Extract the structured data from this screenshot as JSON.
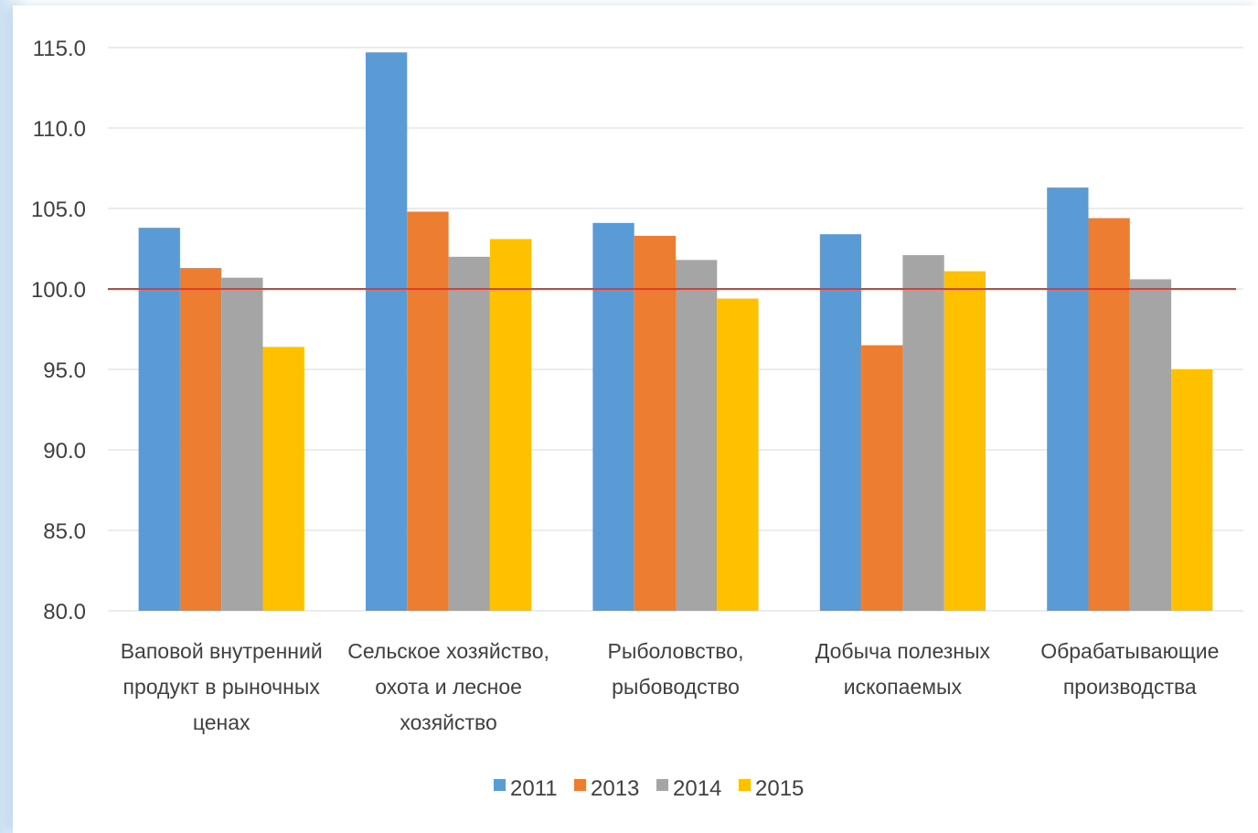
{
  "chart_data": {
    "type": "bar",
    "title": "",
    "xlabel": "",
    "ylabel": "",
    "ylim": [
      80,
      115
    ],
    "yticks": [
      "80.0",
      "85.0",
      "90.0",
      "95.0",
      "100.0",
      "105.0",
      "110.0",
      "115.0"
    ],
    "grid": true,
    "legend_position": "bottom",
    "reference_line": {
      "value": 100,
      "color": "#e8392f"
    },
    "categories": [
      [
        "Ваповой внутренний",
        "продукт в рыночных",
        "ценах"
      ],
      [
        "Сельское хозяйство,",
        "охота и лесное",
        "хозяйство"
      ],
      [
        "Рыболовство,",
        "рыбоводство"
      ],
      [
        "Добыча полезных",
        "ископаемых"
      ],
      [
        "Обрабатывающие",
        "производства"
      ]
    ],
    "series": [
      {
        "name": "2011",
        "color": "#5b9bd5",
        "values": [
          103.8,
          114.7,
          104.1,
          103.4,
          106.3
        ]
      },
      {
        "name": "2013",
        "color": "#ed7d31",
        "values": [
          101.3,
          104.8,
          103.3,
          96.5,
          104.4
        ]
      },
      {
        "name": "2014",
        "color": "#a5a5a5",
        "values": [
          100.7,
          102.0,
          101.8,
          102.1,
          100.6
        ]
      },
      {
        "name": "2015",
        "color": "#ffc000",
        "values": [
          96.4,
          103.1,
          99.4,
          101.1,
          95.0
        ]
      }
    ]
  }
}
